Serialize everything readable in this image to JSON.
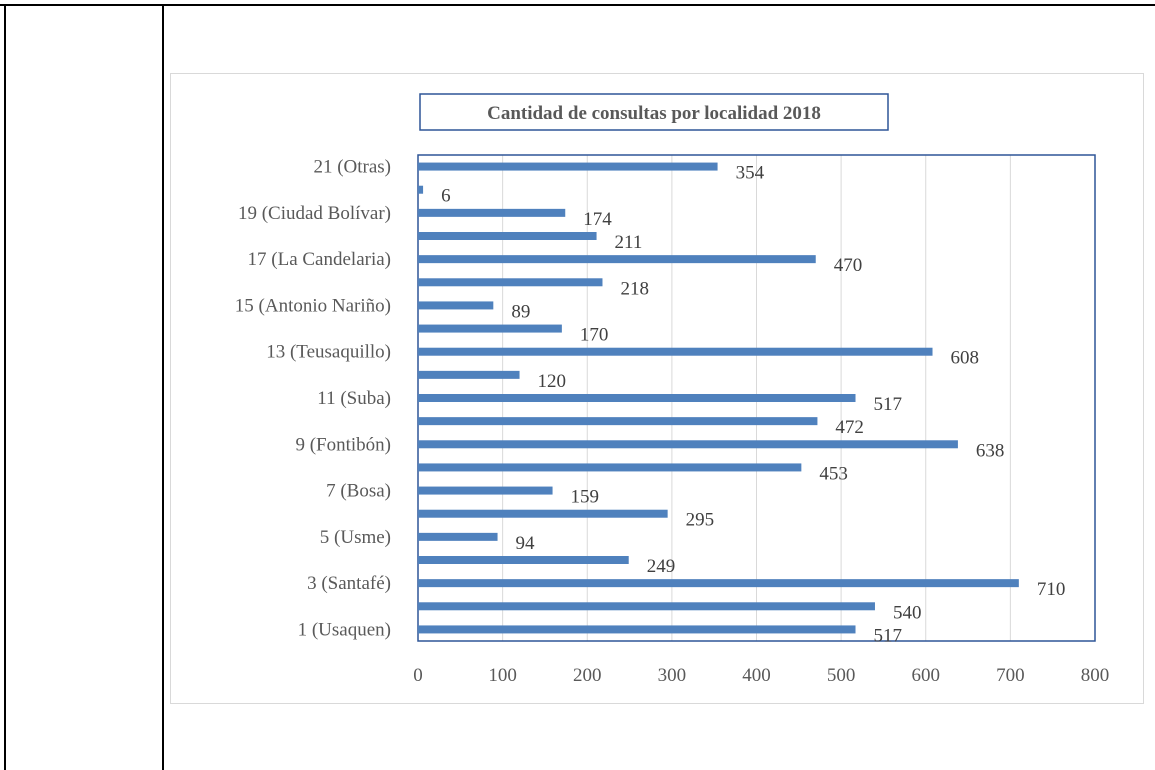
{
  "chart_data": {
    "type": "bar",
    "orientation": "horizontal",
    "title": "Cantidad de consultas por localidad 2018",
    "xlim": [
      0,
      800
    ],
    "xticks": [
      0,
      100,
      200,
      300,
      400,
      500,
      600,
      700,
      800
    ],
    "grid": true,
    "bar_color": "#4f81bd",
    "categories": [
      "1 (Usaquen)",
      "",
      "3 (Santafé)",
      "",
      "5 (Usme)",
      "",
      "7 (Bosa)",
      "",
      "9 (Fontibón)",
      "",
      "11 (Suba)",
      "",
      "13 (Teusaquillo)",
      "",
      "15 (Antonio Nariño)",
      "",
      "17 (La Candelaria)",
      "",
      "19 (Ciudad Bolívar)",
      "",
      "21 (Otras)"
    ],
    "values": [
      517,
      540,
      710,
      249,
      94,
      295,
      159,
      453,
      638,
      472,
      517,
      120,
      608,
      170,
      89,
      218,
      470,
      211,
      174,
      6,
      354
    ]
  }
}
